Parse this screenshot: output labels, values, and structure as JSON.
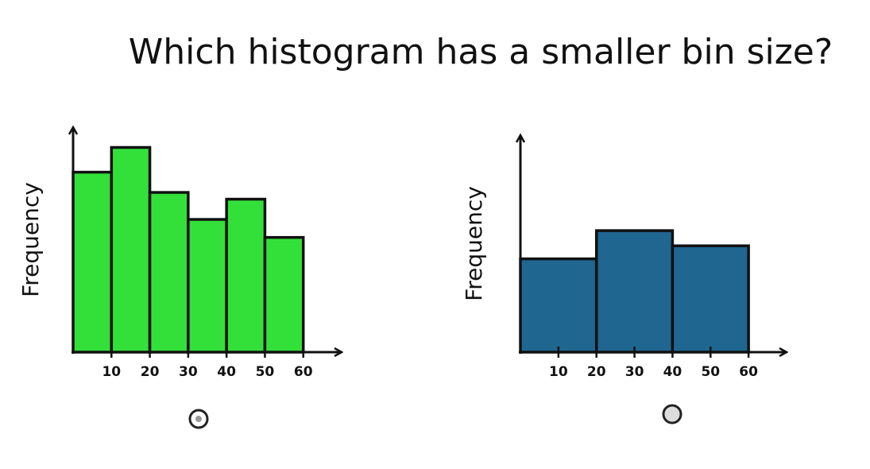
{
  "question": "Which histogram has a smaller bin size?",
  "chart_data": [
    {
      "type": "histogram",
      "ylabel": "Frequency",
      "color": "#33e03a",
      "bins": [
        0,
        10,
        20,
        30,
        40,
        50,
        60
      ],
      "values": [
        8,
        9.1,
        7.1,
        5.9,
        6.8,
        5.1
      ],
      "xlim": [
        0,
        70
      ],
      "xticks": [
        10,
        20,
        30,
        40,
        50,
        60
      ],
      "ylim": [
        0,
        10
      ]
    },
    {
      "type": "histogram",
      "ylabel": "Frequency",
      "color": "#1f6690",
      "bins": [
        0,
        20,
        40,
        60
      ],
      "values": [
        4.3,
        5.6,
        4.9
      ],
      "xlim": [
        0,
        70
      ],
      "xticks": [
        10,
        20,
        30,
        40,
        50,
        60
      ],
      "ylim": [
        0,
        10
      ]
    }
  ]
}
